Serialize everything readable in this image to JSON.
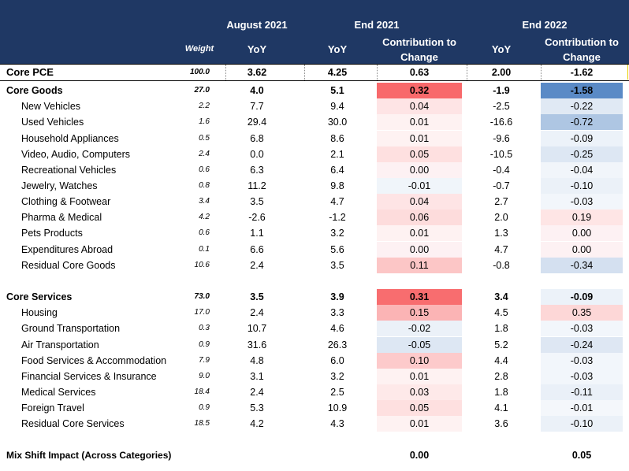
{
  "header": {
    "group_august": "August 2021",
    "group_end2021": "End 2021",
    "group_end2022": "End 2022",
    "col_weight": "Weight",
    "col_yoy_aug": "YoY",
    "col_yoy_2021": "YoY",
    "col_contrib_2021": "Contribution to Change",
    "col_yoy_2022": "YoY",
    "col_contrib_2022": "Contribution to Change"
  },
  "colors": {
    "header_bg": "#1f3864",
    "positive": "#f8696b",
    "negative": "#5a8ac6"
  },
  "chart_data": {
    "type": "table",
    "title": "",
    "columns": [
      "Weight",
      "August 2021 YoY",
      "End 2021 YoY",
      "End 2021 Contribution to Change",
      "End 2022 YoY",
      "End 2022 Contribution to Change"
    ],
    "rows": [
      {
        "name": "Core PCE",
        "weight": "100.0",
        "aug": "3.62",
        "y21": "4.25",
        "c21": "0.63",
        "y22": "2.00",
        "c22": "-1.62",
        "style": "pce"
      },
      {
        "name": "Core Goods",
        "weight": "27.0",
        "aug": "4.0",
        "y21": "5.1",
        "c21": "0.32",
        "y22": "-1.9",
        "c22": "-1.58",
        "style": "bold"
      },
      {
        "name": "New Vehicles",
        "weight": "2.2",
        "aug": "7.7",
        "y21": "9.4",
        "c21": "0.04",
        "y22": "-2.5",
        "c22": "-0.22",
        "style": "indent"
      },
      {
        "name": "Used Vehicles",
        "weight": "1.6",
        "aug": "29.4",
        "y21": "30.0",
        "c21": "0.01",
        "y22": "-16.6",
        "c22": "-0.72",
        "style": "indent"
      },
      {
        "name": "Household Appliances",
        "weight": "0.5",
        "aug": "6.8",
        "y21": "8.6",
        "c21": "0.01",
        "y22": "-9.6",
        "c22": "-0.09",
        "style": "indent"
      },
      {
        "name": "Video, Audio, Computers",
        "weight": "2.4",
        "aug": "0.0",
        "y21": "2.1",
        "c21": "0.05",
        "y22": "-10.5",
        "c22": "-0.25",
        "style": "indent"
      },
      {
        "name": "Recreational Vehicles",
        "weight": "0.6",
        "aug": "6.3",
        "y21": "6.4",
        "c21": "0.00",
        "y22": "-0.4",
        "c22": "-0.04",
        "style": "indent"
      },
      {
        "name": "Jewelry, Watches",
        "weight": "0.8",
        "aug": "11.2",
        "y21": "9.8",
        "c21": "-0.01",
        "y22": "-0.7",
        "c22": "-0.10",
        "style": "indent"
      },
      {
        "name": "Clothing & Footwear",
        "weight": "3.4",
        "aug": "3.5",
        "y21": "4.7",
        "c21": "0.04",
        "y22": "2.7",
        "c22": "-0.03",
        "style": "indent"
      },
      {
        "name": "Pharma & Medical",
        "weight": "4.2",
        "aug": "-2.6",
        "y21": "-1.2",
        "c21": "0.06",
        "y22": "2.0",
        "c22": "0.19",
        "style": "indent"
      },
      {
        "name": "Pets Products",
        "weight": "0.6",
        "aug": "1.1",
        "y21": "3.2",
        "c21": "0.01",
        "y22": "1.3",
        "c22": "0.00",
        "style": "indent"
      },
      {
        "name": "Expenditures Abroad",
        "weight": "0.1",
        "aug": "6.6",
        "y21": "5.6",
        "c21": "0.00",
        "y22": "4.7",
        "c22": "0.00",
        "style": "indent"
      },
      {
        "name": "Residual Core Goods",
        "weight": "10.6",
        "aug": "2.4",
        "y21": "3.5",
        "c21": "0.11",
        "y22": "-0.8",
        "c22": "-0.34",
        "style": "indent"
      },
      {
        "name": "Core Services",
        "weight": "73.0",
        "aug": "3.5",
        "y21": "3.9",
        "c21": "0.31",
        "y22": "3.4",
        "c22": "-0.09",
        "style": "bold"
      },
      {
        "name": "Housing",
        "weight": "17.0",
        "aug": "2.4",
        "y21": "3.3",
        "c21": "0.15",
        "y22": "4.5",
        "c22": "0.35",
        "style": "indent"
      },
      {
        "name": "Ground Transportation",
        "weight": "0.3",
        "aug": "10.7",
        "y21": "4.6",
        "c21": "-0.02",
        "y22": "1.8",
        "c22": "-0.03",
        "style": "indent"
      },
      {
        "name": "Air Transportation",
        "weight": "0.9",
        "aug": "31.6",
        "y21": "26.3",
        "c21": "-0.05",
        "y22": "5.2",
        "c22": "-0.24",
        "style": "indent"
      },
      {
        "name": "Food Services & Accommodation",
        "weight": "7.9",
        "aug": "4.8",
        "y21": "6.0",
        "c21": "0.10",
        "y22": "4.4",
        "c22": "-0.03",
        "style": "indent"
      },
      {
        "name": "Financial Services & Insurance",
        "weight": "9.0",
        "aug": "3.1",
        "y21": "3.2",
        "c21": "0.01",
        "y22": "2.8",
        "c22": "-0.03",
        "style": "indent"
      },
      {
        "name": "Medical Services",
        "weight": "18.4",
        "aug": "2.4",
        "y21": "2.5",
        "c21": "0.03",
        "y22": "1.8",
        "c22": "-0.11",
        "style": "indent"
      },
      {
        "name": "Foreign Travel",
        "weight": "0.9",
        "aug": "5.3",
        "y21": "10.9",
        "c21": "0.05",
        "y22": "4.1",
        "c22": "-0.01",
        "style": "indent"
      },
      {
        "name": "Residual Core Services",
        "weight": "18.5",
        "aug": "4.2",
        "y21": "4.3",
        "c21": "0.01",
        "y22": "3.6",
        "c22": "-0.10",
        "style": "indent"
      },
      {
        "name": "Mix Shift Impact (Across Categories)",
        "weight": "",
        "aug": "",
        "y21": "",
        "c21": "0.00",
        "y22": "",
        "c22": "0.05",
        "style": "mix"
      }
    ]
  }
}
